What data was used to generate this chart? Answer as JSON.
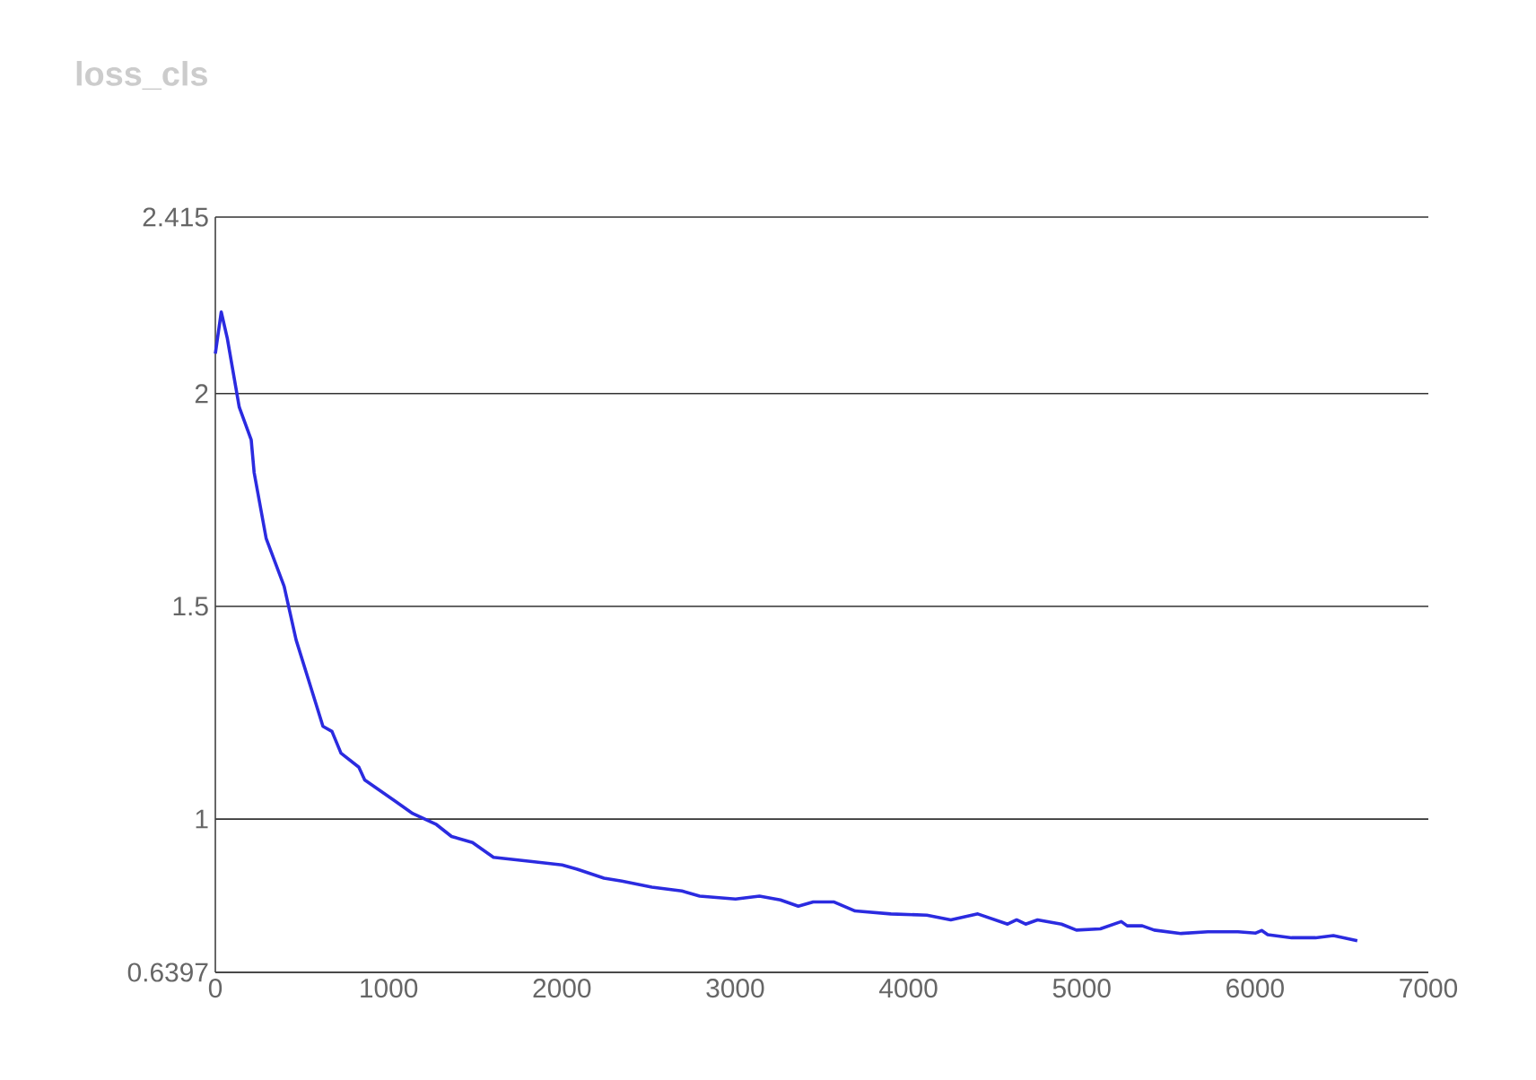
{
  "chart_data": {
    "type": "line",
    "title": "loss_cls",
    "color": "#2b2be0",
    "grid": "y",
    "x": [
      0,
      34,
      69,
      138,
      207,
      224,
      293,
      397,
      466,
      621,
      673,
      725,
      828,
      862,
      1035,
      1139,
      1276,
      1363,
      1484,
      1605,
      1829,
      2001,
      2088,
      2243,
      2346,
      2519,
      2692,
      2795,
      3002,
      3140,
      3261,
      3364,
      3450,
      3571,
      3692,
      3899,
      4106,
      4244,
      4400,
      4572,
      4624,
      4676,
      4745,
      4883,
      4969,
      5107,
      5228,
      5262,
      5349,
      5418,
      5573,
      5728,
      5901,
      6004,
      6038,
      6073,
      6211,
      6349,
      6452,
      6590
    ],
    "values": [
      2.094,
      2.192,
      2.13,
      1.968,
      1.891,
      1.814,
      1.66,
      1.547,
      1.421,
      1.218,
      1.206,
      1.155,
      1.122,
      1.092,
      1.043,
      1.013,
      0.987,
      0.959,
      0.945,
      0.91,
      0.9,
      0.892,
      0.882,
      0.861,
      0.854,
      0.84,
      0.831,
      0.819,
      0.812,
      0.819,
      0.81,
      0.795,
      0.805,
      0.805,
      0.784,
      0.777,
      0.774,
      0.763,
      0.777,
      0.753,
      0.763,
      0.753,
      0.763,
      0.753,
      0.739,
      0.742,
      0.759,
      0.749,
      0.749,
      0.739,
      0.731,
      0.735,
      0.735,
      0.732,
      0.738,
      0.728,
      0.721,
      0.721,
      0.726,
      0.714
    ],
    "xlim": [
      0,
      7000
    ],
    "ylim": [
      0.6397,
      2.415
    ],
    "xticks": [
      0,
      1000,
      2000,
      3000,
      4000,
      5000,
      6000,
      7000
    ],
    "yticks": [
      0.6397,
      1,
      1.5,
      2,
      2.415
    ]
  }
}
